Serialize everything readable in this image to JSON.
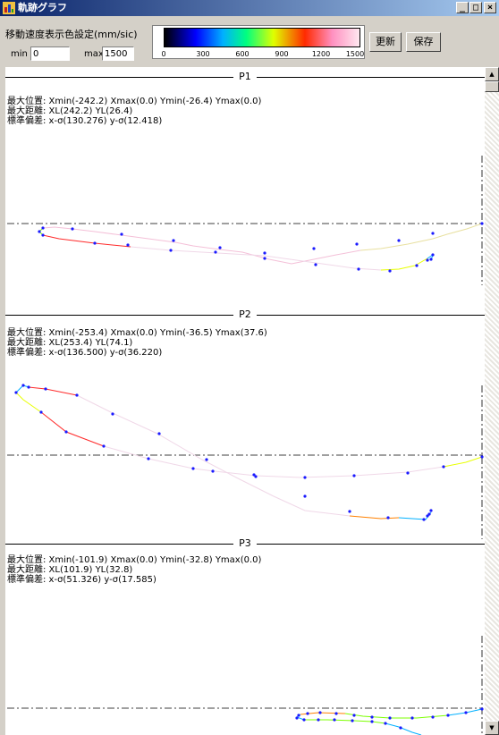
{
  "window": {
    "title": "軌跡グラフ",
    "minimize": "_",
    "maximize": "□",
    "close": "×"
  },
  "toolbar": {
    "speed_label": "移動速度表示色設定(mm/sic)",
    "min_label": "min",
    "min_value": "0",
    "max_label": "max",
    "max_value": "1500",
    "update_button": "更新",
    "save_button": "保存",
    "scale_ticks": [
      "0",
      "300",
      "600",
      "900",
      "1200",
      "1500"
    ]
  },
  "panels": [
    {
      "name": "P1",
      "line1": "最大位置: Xmin(-242.2) Xmax(0.0) Ymin(-26.4) Ymax(0.0)",
      "line2": "最大距離: XL(242.2)  YL(26.4)",
      "line3": "標準偏差: x-σ(130.276)  y-σ(12.418)"
    },
    {
      "name": "P2",
      "line1": "最大位置: Xmin(-253.4) Xmax(0.0) Ymin(-36.5) Ymax(37.6)",
      "line2": "最大距離: XL(253.4)  YL(74.1)",
      "line3": "標準偏差: x-σ(136.500)  y-σ(36.220)"
    },
    {
      "name": "P3",
      "line1": "最大位置: Xmin(-101.9) Xmax(0.0) Ymin(-32.8) Ymax(0.0)",
      "line2": "最大距離: XL(101.9)  YL(32.8)",
      "line3": "標準偏差: x-σ(51.326)  y-σ(17.585)"
    }
  ],
  "colors": {
    "slow": "#0000ff",
    "cyan": "#00b0ff",
    "green": "#7cff00",
    "yellow": "#e8ff00",
    "orange": "#ff8000",
    "red": "#ff2a2a",
    "pink": "#ff90c0",
    "fast": "#f0d8e8",
    "point": "#1a1aff"
  },
  "icons": {
    "app": "app-icon",
    "scroll_up": "scroll-up-arrow-icon",
    "scroll_down": "scroll-down-arrow-icon"
  }
}
